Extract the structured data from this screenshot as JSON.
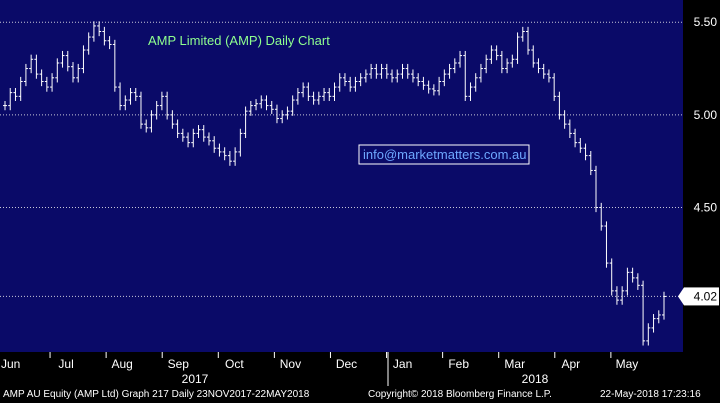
{
  "chart_data": {
    "type": "ohlc",
    "title": "AMP Limited (AMP) Daily Chart",
    "annotation": "info@marketmatters.com.au",
    "ylim": [
      3.72,
      5.62
    ],
    "y_ticks": [
      {
        "value": 5.5,
        "label": "5.50"
      },
      {
        "value": 5.0,
        "label": "5.00"
      },
      {
        "value": 4.5,
        "label": "4.50"
      },
      {
        "value": 4.02,
        "label": "4.02"
      }
    ],
    "last_price_label": "4.02",
    "months": [
      "Jun",
      "Jul",
      "Aug",
      "Sep",
      "Oct",
      "Nov",
      "Dec",
      "Jan",
      "Feb",
      "Mar",
      "Apr",
      "May"
    ],
    "years": [
      "2017",
      "2018"
    ],
    "series": [
      {
        "values": [
          5.05,
          5.12,
          5.1,
          5.18,
          5.25,
          5.3,
          5.22,
          5.18,
          5.15,
          5.2,
          5.28,
          5.32,
          5.26,
          5.2,
          5.25,
          5.35,
          5.42,
          5.48,
          5.45,
          5.4,
          5.38,
          5.15,
          5.05,
          5.08,
          5.12,
          5.1,
          4.95,
          4.93,
          5.0,
          5.05,
          5.1,
          5.0,
          4.95,
          4.9,
          4.88,
          4.85,
          4.9,
          4.92,
          4.88,
          4.86,
          4.82,
          4.8,
          4.78,
          4.75,
          4.8,
          4.9,
          5.02,
          5.05,
          5.06,
          5.08,
          5.05,
          5.03,
          4.98,
          5.0,
          5.02,
          5.08,
          5.12,
          5.15,
          5.1,
          5.08,
          5.1,
          5.12,
          5.1,
          5.15,
          5.2,
          5.18,
          5.15,
          5.18,
          5.2,
          5.22,
          5.25,
          5.22,
          5.25,
          5.22,
          5.2,
          5.22,
          5.25,
          5.22,
          5.2,
          5.18,
          5.16,
          5.14,
          5.13,
          5.18,
          5.22,
          5.25,
          5.28,
          5.32,
          5.1,
          5.15,
          5.2,
          5.25,
          5.3,
          5.35,
          5.32,
          5.25,
          5.28,
          5.3,
          5.42,
          5.45,
          5.35,
          5.28,
          5.25,
          5.22,
          5.2,
          5.1,
          5.0,
          4.95,
          4.9,
          4.85,
          4.82,
          4.78,
          4.7,
          4.5,
          4.4,
          4.2,
          4.05,
          4.0,
          4.05,
          4.15,
          4.12,
          4.08,
          3.78,
          3.85,
          3.9,
          3.92,
          4.02
        ]
      }
    ]
  },
  "footer": {
    "left": "AMP AU Equity (AMP Ltd)  Graph 217  Daily 23NOV2017-22MAY2018",
    "center": "Copyright© 2018 Bloomberg Finance L.P.",
    "right": "22-May-2018 17:23:16"
  },
  "colors": {
    "background": "#0a0a68",
    "bars": "#ffffff",
    "title": "#8fff8f",
    "grid": "#c8c8d8",
    "annotation_border": "#ffffff",
    "annotation_text": "#6ea8ff"
  }
}
